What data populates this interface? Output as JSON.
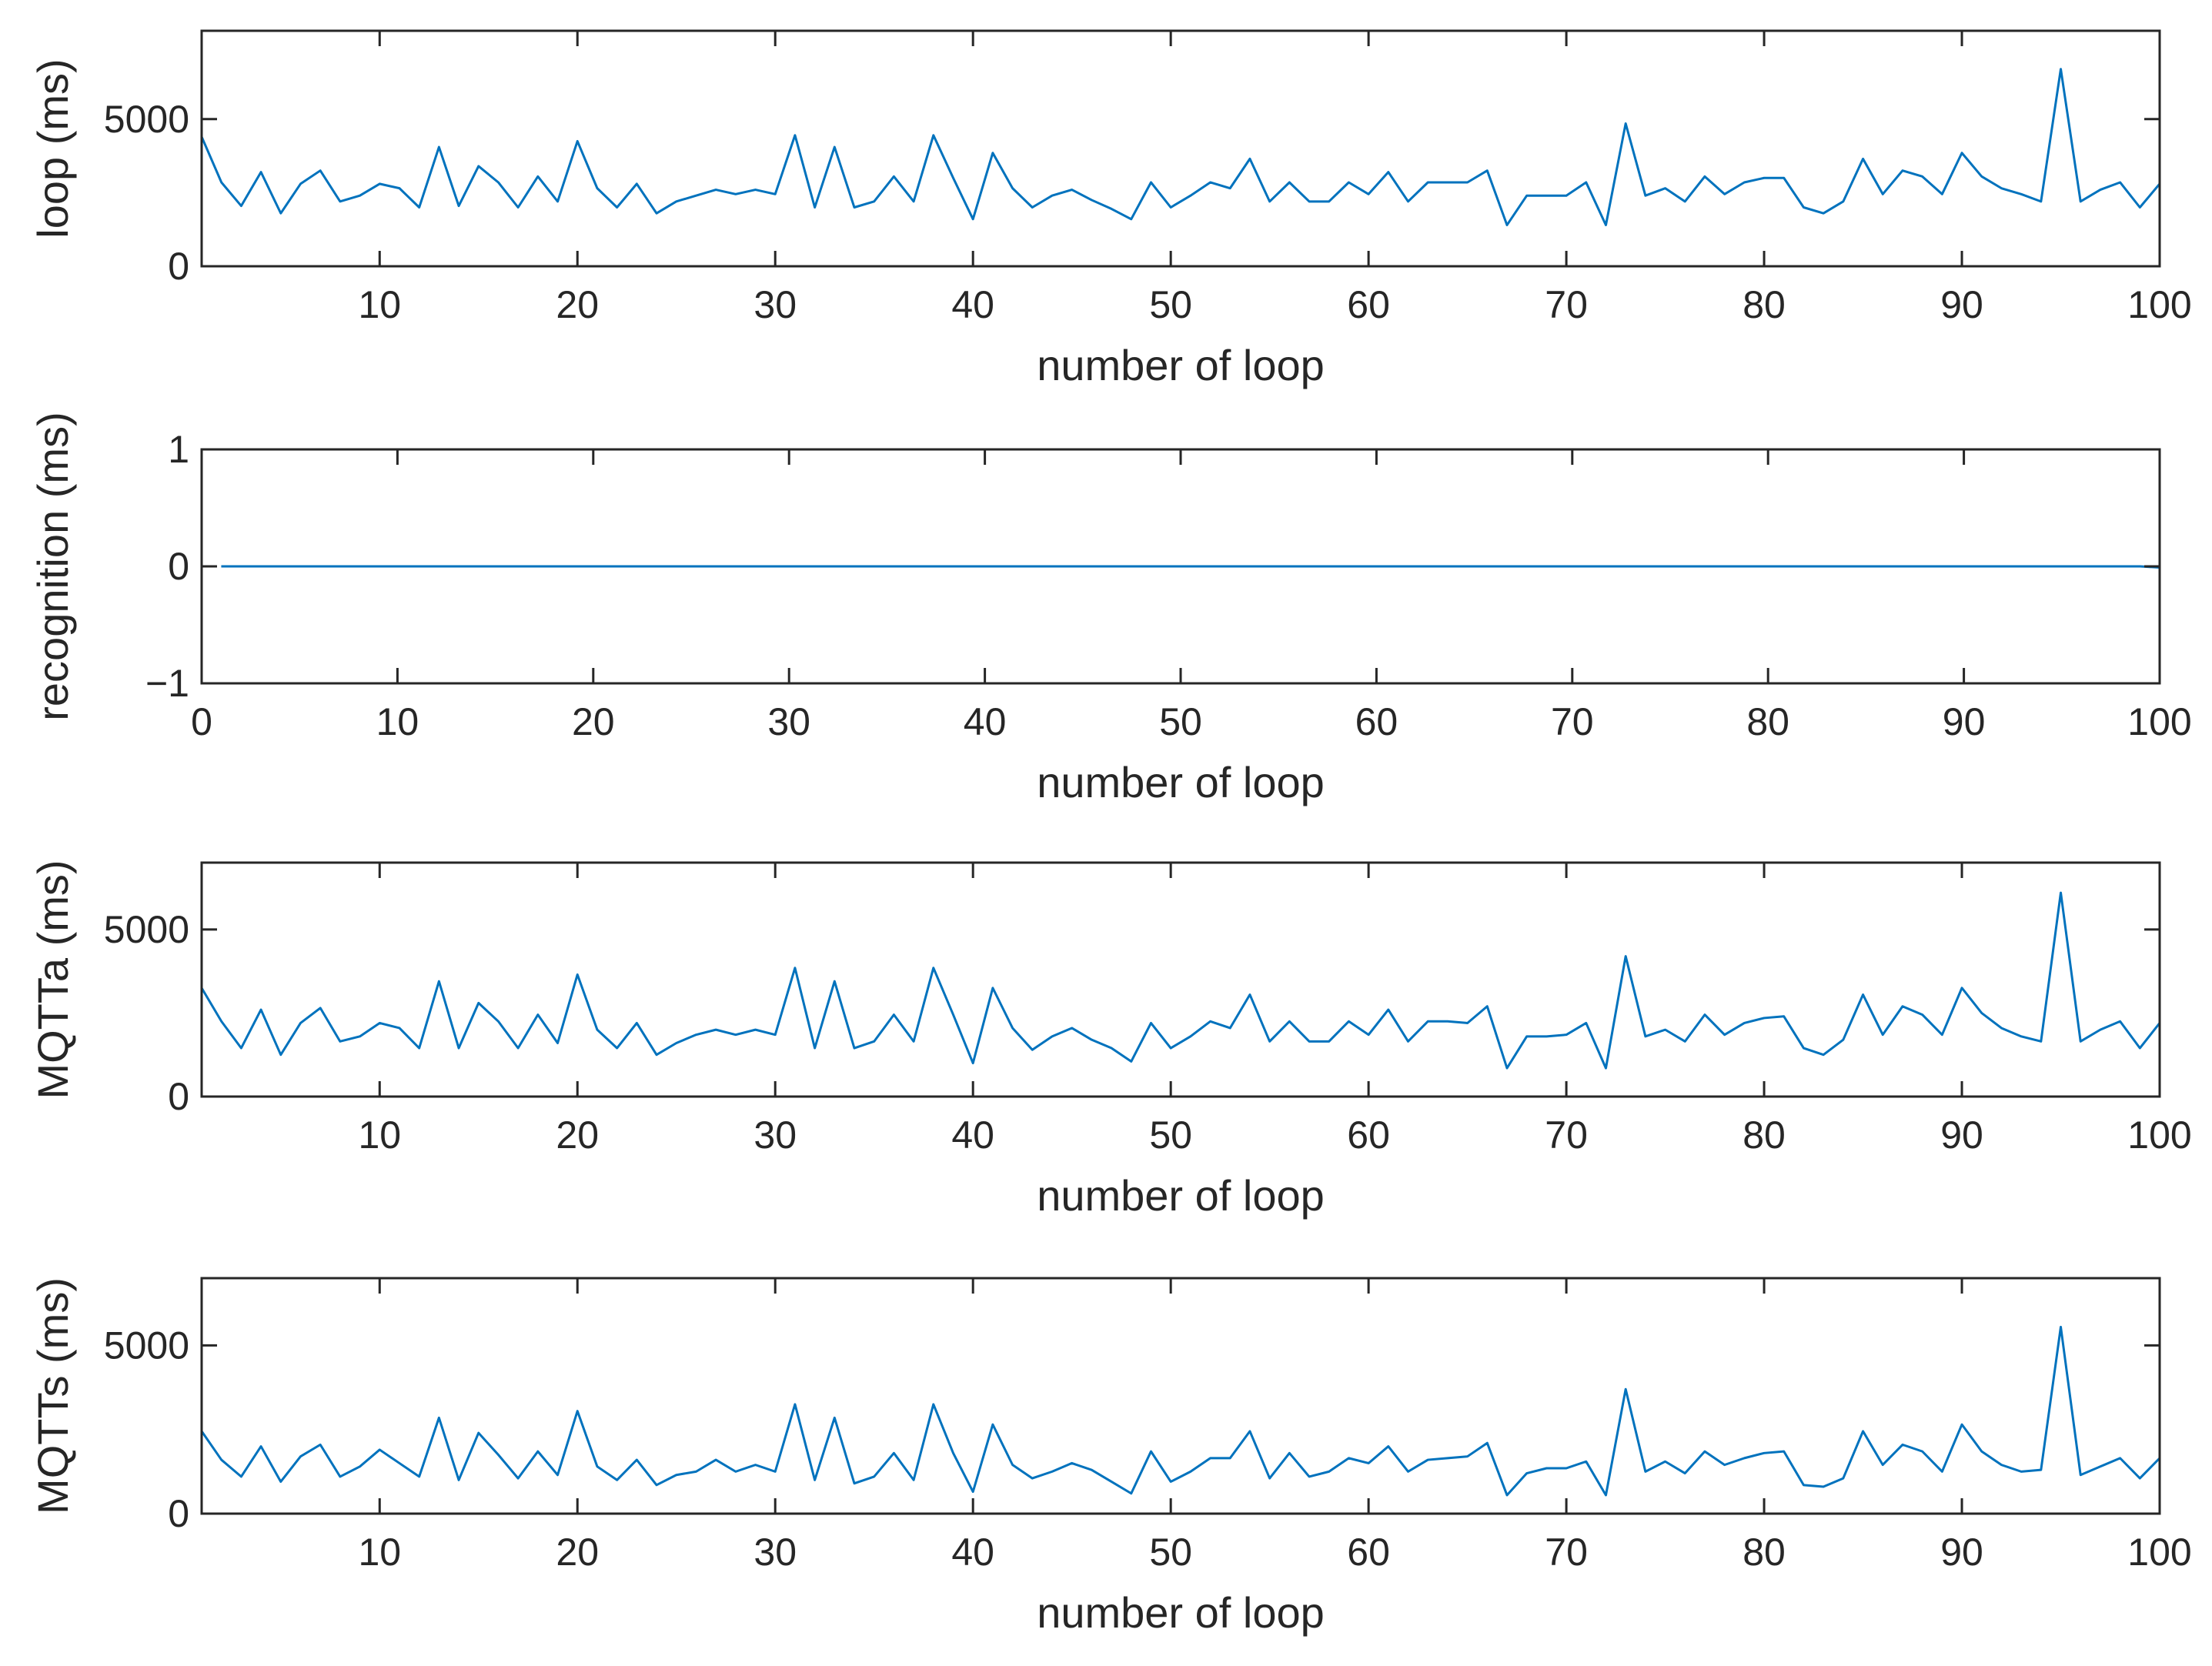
{
  "figure": {
    "line_color": "#0072BD",
    "axis_color": "#262626",
    "background": "#ffffff"
  },
  "chart_data": [
    {
      "type": "line",
      "xlabel": "number of loop",
      "ylabel": "loop (ms)",
      "xlim": [
        1,
        100
      ],
      "ylim": [
        0,
        8000
      ],
      "xticks": [
        10,
        20,
        30,
        40,
        50,
        60,
        70,
        80,
        90,
        100
      ],
      "yticks": [
        0,
        5000
      ],
      "ytick_labels": [
        "0",
        "5000"
      ],
      "grid": false,
      "series": [
        {
          "x": [
            1,
            2,
            3,
            4,
            5,
            6,
            7,
            8,
            9,
            10,
            11,
            12,
            13,
            14,
            15,
            16,
            17,
            18,
            19,
            20,
            21,
            22,
            23,
            24,
            25,
            26,
            27,
            28,
            29,
            30,
            31,
            32,
            33,
            34,
            35,
            36,
            37,
            38,
            39,
            40,
            41,
            42,
            43,
            44,
            45,
            46,
            47,
            48,
            49,
            50,
            51,
            52,
            53,
            54,
            55,
            56,
            57,
            58,
            59,
            60,
            61,
            62,
            63,
            64,
            65,
            66,
            67,
            68,
            69,
            70,
            71,
            72,
            73,
            74,
            75,
            76,
            77,
            78,
            79,
            80,
            81,
            82,
            83,
            84,
            85,
            86,
            87,
            88,
            89,
            90,
            91,
            92,
            93,
            94,
            95,
            96,
            97,
            98,
            99,
            100
          ],
          "y": [
            4400,
            2850,
            2050,
            3200,
            1800,
            2800,
            3250,
            2200,
            2400,
            2800,
            2650,
            2000,
            4050,
            2050,
            3400,
            2850,
            2000,
            3050,
            2200,
            4250,
            2650,
            2000,
            2800,
            1800,
            2200,
            2400,
            2600,
            2450,
            2600,
            2450,
            4450,
            2000,
            4050,
            2000,
            2200,
            3050,
            2200,
            4450,
            3000,
            1600,
            3850,
            2650,
            2000,
            2400,
            2600,
            2250,
            1950,
            1600,
            2850,
            2000,
            2400,
            2850,
            2650,
            3650,
            2200,
            2850,
            2200,
            2200,
            2850,
            2450,
            3200,
            2200,
            2850,
            2850,
            2850,
            3250,
            1400,
            2400,
            2400,
            2400,
            2850,
            1400,
            4850,
            2400,
            2650,
            2200,
            3050,
            2450,
            2850,
            3000,
            3000,
            2000,
            1800,
            2200,
            3650,
            2450,
            3250,
            3050,
            2450,
            3850,
            3050,
            2650,
            2450,
            2200,
            6700,
            2200,
            2600,
            2850,
            2000,
            2800
          ]
        }
      ]
    },
    {
      "type": "line",
      "xlabel": "number of loop",
      "ylabel": "recognition (ms)",
      "xlim": [
        0,
        100
      ],
      "ylim": [
        -1,
        1
      ],
      "xticks": [
        0,
        10,
        20,
        30,
        40,
        50,
        60,
        70,
        80,
        90,
        100
      ],
      "yticks": [
        -1,
        0,
        1
      ],
      "ytick_labels": [
        "−1",
        "0",
        "1"
      ],
      "grid": false,
      "series": [
        {
          "x": [
            1,
            2,
            3,
            4,
            5,
            6,
            7,
            8,
            9,
            10,
            11,
            12,
            13,
            14,
            15,
            16,
            17,
            18,
            19,
            20,
            21,
            22,
            23,
            24,
            25,
            26,
            27,
            28,
            29,
            30,
            31,
            32,
            33,
            34,
            35,
            36,
            37,
            38,
            39,
            40,
            41,
            42,
            43,
            44,
            45,
            46,
            47,
            48,
            49,
            50,
            51,
            52,
            53,
            54,
            55,
            56,
            57,
            58,
            59,
            60,
            61,
            62,
            63,
            64,
            65,
            66,
            67,
            68,
            69,
            70,
            71,
            72,
            73,
            74,
            75,
            76,
            77,
            78,
            79,
            80,
            81,
            82,
            83,
            84,
            85,
            86,
            87,
            88,
            89,
            90,
            91,
            92,
            93,
            94,
            95,
            96,
            97,
            98,
            99,
            100
          ],
          "y": [
            0,
            0,
            0,
            0,
            0,
            0,
            0,
            0,
            0,
            0,
            0,
            0,
            0,
            0,
            0,
            0,
            0,
            0,
            0,
            0,
            0,
            0,
            0,
            0,
            0,
            0,
            0,
            0,
            0,
            0,
            0,
            0,
            0,
            0,
            0,
            0,
            0,
            0,
            0,
            0,
            0,
            0,
            0,
            0,
            0,
            0,
            0,
            0,
            0,
            0,
            0,
            0,
            0,
            0,
            0,
            0,
            0,
            0,
            0,
            0,
            0,
            0,
            0,
            0,
            0,
            0,
            0,
            0,
            0,
            0,
            0,
            0,
            0,
            0,
            0,
            0,
            0,
            0,
            0,
            0,
            0,
            0,
            0,
            0,
            0,
            0,
            0,
            0,
            0,
            0,
            0,
            0,
            0,
            0,
            0,
            0,
            0,
            0,
            0,
            -0.01
          ]
        }
      ]
    },
    {
      "type": "line",
      "xlabel": "number of loop",
      "ylabel": "MQTTa (ms)",
      "xlim": [
        1,
        100
      ],
      "ylim": [
        0,
        7000
      ],
      "xticks": [
        10,
        20,
        30,
        40,
        50,
        60,
        70,
        80,
        90,
        100
      ],
      "yticks": [
        0,
        5000
      ],
      "ytick_labels": [
        "0",
        "5000"
      ],
      "grid": false,
      "series": [
        {
          "x": [
            1,
            2,
            3,
            4,
            5,
            6,
            7,
            8,
            9,
            10,
            11,
            12,
            13,
            14,
            15,
            16,
            17,
            18,
            19,
            20,
            21,
            22,
            23,
            24,
            25,
            26,
            27,
            28,
            29,
            30,
            31,
            32,
            33,
            34,
            35,
            36,
            37,
            38,
            39,
            40,
            41,
            42,
            43,
            44,
            45,
            46,
            47,
            48,
            49,
            50,
            51,
            52,
            53,
            54,
            55,
            56,
            57,
            58,
            59,
            60,
            61,
            62,
            63,
            64,
            65,
            66,
            67,
            68,
            69,
            70,
            71,
            72,
            73,
            74,
            75,
            76,
            77,
            78,
            79,
            80,
            81,
            82,
            83,
            84,
            85,
            86,
            87,
            88,
            89,
            90,
            91,
            92,
            93,
            94,
            95,
            96,
            97,
            98,
            99,
            100
          ],
          "y": [
            3250,
            2250,
            1450,
            2600,
            1250,
            2200,
            2650,
            1650,
            1800,
            2200,
            2050,
            1450,
            3450,
            1450,
            2800,
            2250,
            1450,
            2450,
            1600,
            3650,
            2000,
            1450,
            2200,
            1250,
            1600,
            1850,
            2000,
            1850,
            2000,
            1850,
            3850,
            1450,
            3450,
            1450,
            1650,
            2450,
            1650,
            3850,
            2450,
            1000,
            3250,
            2050,
            1400,
            1800,
            2050,
            1700,
            1450,
            1050,
            2200,
            1450,
            1800,
            2250,
            2050,
            3050,
            1650,
            2250,
            1650,
            1650,
            2250,
            1850,
            2600,
            1650,
            2250,
            2250,
            2200,
            2700,
            850,
            1800,
            1800,
            1850,
            2200,
            850,
            4200,
            1800,
            2000,
            1650,
            2450,
            1850,
            2200,
            2350,
            2400,
            1450,
            1250,
            1700,
            3050,
            1850,
            2700,
            2450,
            1850,
            3250,
            2500,
            2050,
            1800,
            1650,
            6100,
            1650,
            2000,
            2250,
            1450,
            2200
          ]
        }
      ]
    },
    {
      "type": "line",
      "xlabel": "number of loop",
      "ylabel": "MQTTs (ms)",
      "xlim": [
        1,
        100
      ],
      "ylim": [
        0,
        7000
      ],
      "xticks": [
        10,
        20,
        30,
        40,
        50,
        60,
        70,
        80,
        90,
        100
      ],
      "yticks": [
        0,
        5000
      ],
      "ytick_labels": [
        "0",
        "5000"
      ],
      "grid": false,
      "series": [
        {
          "x": [
            1,
            2,
            3,
            4,
            5,
            6,
            7,
            8,
            9,
            10,
            11,
            12,
            13,
            14,
            15,
            16,
            17,
            18,
            19,
            20,
            21,
            22,
            23,
            24,
            25,
            26,
            27,
            28,
            29,
            30,
            31,
            32,
            33,
            34,
            35,
            36,
            37,
            38,
            39,
            40,
            41,
            42,
            43,
            44,
            45,
            46,
            47,
            48,
            49,
            50,
            51,
            52,
            53,
            54,
            55,
            56,
            57,
            58,
            59,
            60,
            61,
            62,
            63,
            64,
            65,
            66,
            67,
            68,
            69,
            70,
            71,
            72,
            73,
            74,
            75,
            76,
            77,
            78,
            79,
            80,
            81,
            82,
            83,
            84,
            85,
            86,
            87,
            88,
            89,
            90,
            91,
            92,
            93,
            94,
            95,
            96,
            97,
            98,
            99,
            100
          ],
          "y": [
            2450,
            1600,
            1100,
            2000,
            950,
            1700,
            2050,
            1100,
            1400,
            1900,
            1500,
            1100,
            2850,
            1000,
            2400,
            1750,
            1050,
            1850,
            1150,
            3050,
            1400,
            1000,
            1600,
            850,
            1150,
            1250,
            1600,
            1250,
            1450,
            1250,
            3250,
            1000,
            2850,
            900,
            1100,
            1800,
            1000,
            3250,
            1800,
            650,
            2650,
            1450,
            1050,
            1250,
            1500,
            1300,
            950,
            600,
            1850,
            950,
            1250,
            1650,
            1650,
            2450,
            1050,
            1800,
            1100,
            1250,
            1650,
            1500,
            2000,
            1250,
            1600,
            1650,
            1700,
            2100,
            550,
            1200,
            1350,
            1350,
            1550,
            550,
            3700,
            1250,
            1550,
            1200,
            1850,
            1450,
            1650,
            1800,
            1850,
            850,
            800,
            1050,
            2450,
            1450,
            2050,
            1850,
            1250,
            2650,
            1850,
            1450,
            1250,
            1300,
            5550,
            1150,
            1400,
            1650,
            1050,
            1650
          ]
        }
      ]
    }
  ]
}
